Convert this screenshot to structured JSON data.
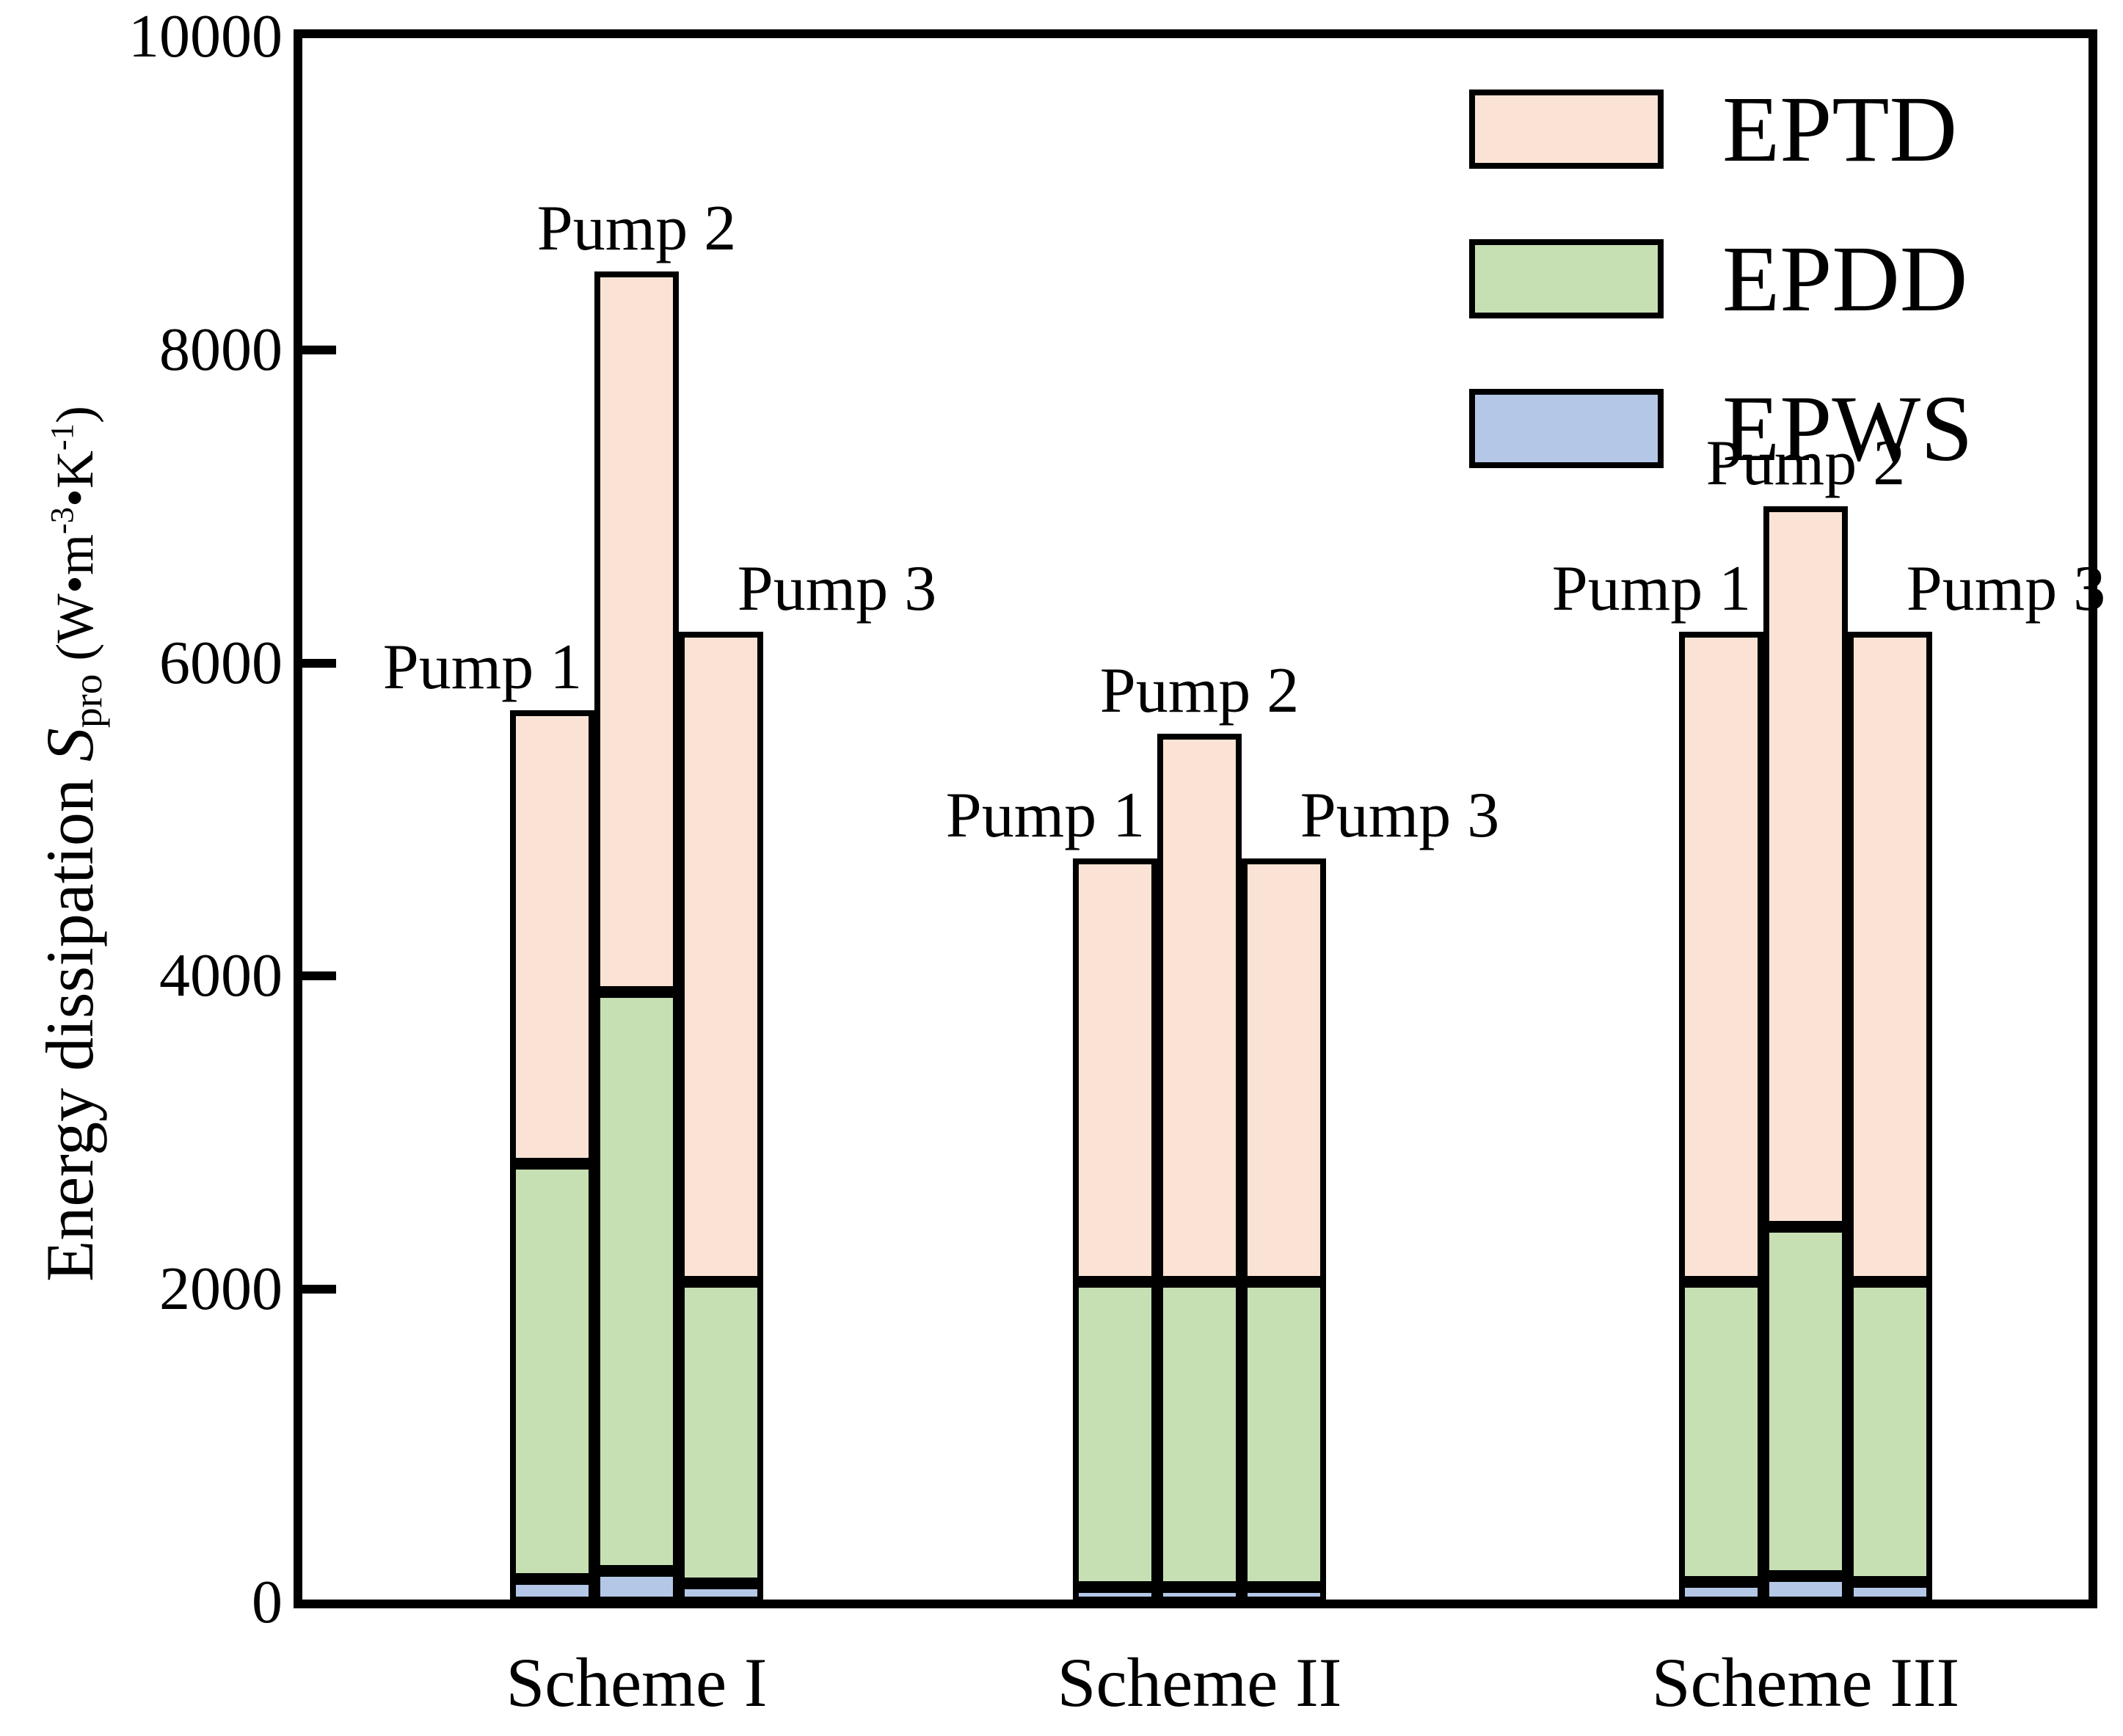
{
  "figure": {
    "background": "#ffffff"
  },
  "y_axis": {
    "label_prefix": "Energy dissipation ",
    "label_symbol": "S",
    "label_subscript": "pro",
    "label_unit_open": " (W•m",
    "label_unit_sup1": "-3",
    "label_unit_mid": "•K",
    "label_unit_sup2": "-1",
    "label_unit_close": ")",
    "tick_labels": [
      "0",
      "2000",
      "4000",
      "6000",
      "8000",
      "10000"
    ]
  },
  "x_axis": {
    "labels": [
      "Scheme I",
      "Scheme II",
      "Scheme III"
    ]
  },
  "legend": [
    {
      "label": "EPTD",
      "color": "#fae3d4"
    },
    {
      "label": "EPDD",
      "color": "#c6e0b4"
    },
    {
      "label": "EPWS",
      "color": "#b4c7e7"
    }
  ],
  "colors": {
    "eptd": "#fae3d4",
    "epdd": "#c6e0b4",
    "epws": "#b4c7e7",
    "axis": "#000000"
  },
  "chart_data": {
    "type": "bar",
    "stacked": true,
    "title": "",
    "xlabel": "",
    "ylabel": "Energy dissipation S_pro (W•m-3•K-1)",
    "ylim": [
      0,
      10000
    ],
    "yticks": [
      0,
      2000,
      4000,
      6000,
      8000,
      10000
    ],
    "grid": false,
    "legend_position": "upper right",
    "legend_order": [
      "EPTD",
      "EPDD",
      "EPWS"
    ],
    "groups": [
      "Scheme I",
      "Scheme II",
      "Scheme III"
    ],
    "bar_labels": [
      "Pump 1",
      "Pump 2",
      "Pump 3"
    ],
    "series": [
      {
        "name": "EPWS",
        "color": "#b4c7e7",
        "values": [
          [
            150,
            200,
            120
          ],
          [
            100,
            100,
            100
          ],
          [
            130,
            170,
            130
          ]
        ]
      },
      {
        "name": "EPDD",
        "color": "#c6e0b4",
        "values": [
          [
            2650,
            3700,
            1930
          ],
          [
            1950,
            1950,
            1950
          ],
          [
            1920,
            2230,
            1920
          ]
        ]
      },
      {
        "name": "EPTD",
        "color": "#fae3d4",
        "values": [
          [
            2900,
            4600,
            4150
          ],
          [
            2700,
            3500,
            2700
          ],
          [
            4150,
            4600,
            4150
          ]
        ]
      }
    ],
    "stack_totals": [
      [
        5700,
        8500,
        6200
      ],
      [
        4750,
        5550,
        4750
      ],
      [
        6200,
        7000,
        6200
      ]
    ]
  }
}
